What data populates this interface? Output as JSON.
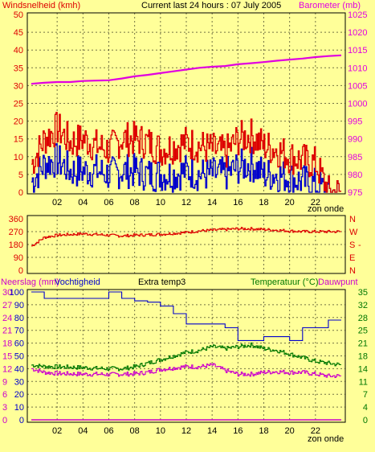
{
  "colors": {
    "background": "#ffff99",
    "wind_speed": "#dd0000",
    "wind_gust_low": "#0000cc",
    "barometer": "#e000e0",
    "wind_dir": "#dd0000",
    "humidity": "#0000cc",
    "temperature": "#007700",
    "dewpoint": "#cc00cc",
    "rain": "#cc00cc"
  },
  "header": {
    "left": "Windsnelheid (kmh)",
    "center": "Current last 24 hours : 07 July 2005",
    "right": "Barometer (mb)"
  },
  "x_ticks": [
    "02",
    "04",
    "06",
    "08",
    "10",
    "12",
    "14",
    "16",
    "18",
    "20",
    "22"
  ],
  "xaxis_suffix": "zon onde",
  "chart_data": [
    {
      "type": "line",
      "title": "",
      "left_axis_label": "Windsnelheid (kmh)",
      "right_axis_label": "Barometer (mb)",
      "ylim_left": [
        0,
        50
      ],
      "ylim_right": [
        975,
        1025
      ],
      "left_ticks": [
        0,
        5,
        10,
        15,
        20,
        25,
        30,
        35,
        40,
        45,
        50
      ],
      "right_ticks": [
        975,
        980,
        985,
        990,
        995,
        1000,
        1005,
        1010,
        1015,
        1020,
        1025
      ],
      "x": [
        0,
        1,
        2,
        3,
        4,
        5,
        6,
        7,
        8,
        9,
        10,
        11,
        12,
        13,
        14,
        15,
        16,
        17,
        18,
        19,
        20,
        21,
        22,
        23,
        24
      ],
      "series": [
        {
          "axis": "left",
          "values": [
            8,
            15,
            18,
            14,
            15,
            13,
            12,
            15,
            15,
            14,
            12,
            13,
            14,
            13,
            12,
            11,
            15,
            16,
            13,
            12,
            10,
            9,
            8,
            0,
            0
          ]
        },
        {
          "axis": "left",
          "values": [
            3,
            8,
            9,
            6,
            6,
            6,
            5,
            6,
            6,
            5,
            5,
            5,
            6,
            5,
            5,
            5,
            7,
            8,
            5,
            5,
            4,
            3,
            2,
            0,
            0
          ]
        },
        {
          "axis": "right",
          "values": [
            1005.5,
            1005.8,
            1006,
            1006,
            1006.3,
            1006.4,
            1006.5,
            1007,
            1007.6,
            1008,
            1008.5,
            1009,
            1009.5,
            1010,
            1010.3,
            1010.5,
            1011,
            1011.3,
            1011.6,
            1012,
            1012.3,
            1012.6,
            1013,
            1013.3,
            1013.5
          ]
        }
      ]
    },
    {
      "type": "line",
      "title": "",
      "ylim": [
        0,
        360
      ],
      "left_ticks": [
        0,
        90,
        180,
        270,
        360
      ],
      "right_labels": [
        "N",
        "W",
        "S",
        "E",
        "N"
      ],
      "x": [
        0,
        1,
        2,
        3,
        4,
        5,
        6,
        7,
        8,
        9,
        10,
        11,
        12,
        13,
        14,
        15,
        16,
        17,
        18,
        19,
        20,
        21,
        22,
        23,
        24
      ],
      "series": [
        {
          "values": [
            170,
            230,
            245,
            250,
            255,
            250,
            245,
            240,
            245,
            248,
            252,
            258,
            265,
            275,
            280,
            285,
            290,
            290,
            285,
            280,
            275,
            270,
            270,
            270,
            270
          ]
        }
      ]
    },
    {
      "type": "line",
      "header_labels": [
        "Neerslag (mm)",
        "Vochtigheid",
        "Extra temp3",
        "Temperatuur (°C)",
        "Dauwpunt"
      ],
      "left_ticks_rain": [
        0,
        3,
        6,
        9,
        12,
        15,
        18,
        21,
        24,
        27,
        30
      ],
      "left_ticks_humidity": [
        0,
        10,
        20,
        30,
        40,
        50,
        60,
        70,
        80,
        90,
        100
      ],
      "right_ticks_temp": [
        0,
        4,
        7,
        11,
        14,
        18,
        21,
        25,
        28,
        32,
        35
      ],
      "ylim_humidity": [
        0,
        100
      ],
      "ylim_temp": [
        0,
        35
      ],
      "x": [
        0,
        1,
        2,
        3,
        4,
        5,
        6,
        7,
        8,
        9,
        10,
        11,
        12,
        13,
        14,
        15,
        16,
        17,
        18,
        19,
        20,
        21,
        22,
        23,
        24
      ],
      "series": [
        {
          "axis": "humidity",
          "values": [
            100,
            95,
            95,
            95,
            95,
            95,
            100,
            95,
            93,
            92,
            89,
            83,
            75,
            75,
            75,
            72,
            62,
            62,
            65,
            65,
            62,
            72,
            72,
            78,
            78
          ]
        },
        {
          "axis": "temp",
          "values": [
            15,
            14.6,
            14.5,
            14.4,
            14.3,
            14.1,
            14,
            14,
            14.5,
            15.5,
            16.5,
            17.5,
            18.5,
            19,
            20,
            19.5,
            20,
            20.5,
            19.5,
            19,
            18,
            17,
            16,
            15.5,
            15
          ]
        },
        {
          "axis": "temp",
          "values": [
            14,
            13,
            12.7,
            12.6,
            12.5,
            12.5,
            12.4,
            12.5,
            12.6,
            13,
            13.8,
            14.2,
            14.6,
            14.5,
            15,
            13.5,
            12.5,
            12.5,
            13,
            13.2,
            13,
            13,
            12.5,
            12,
            12
          ]
        },
        {
          "axis": "rain",
          "values": [
            0,
            0,
            0,
            0,
            0,
            0,
            0,
            0,
            0,
            0,
            0,
            0,
            0,
            0,
            0,
            0,
            0,
            0,
            0,
            0,
            0,
            0,
            0,
            0,
            0
          ]
        }
      ]
    }
  ]
}
